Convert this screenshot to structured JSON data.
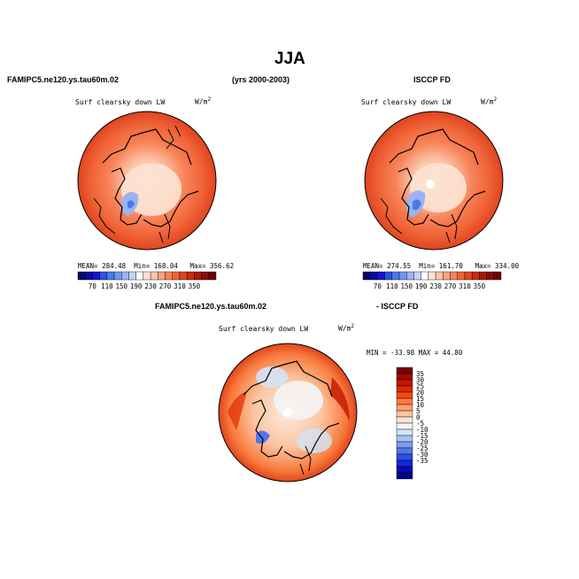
{
  "title": "JJA",
  "top_left_header": "FAMIPC5.ne120.ys.tau60m.02",
  "top_center_header": "(yrs 2000-2003)",
  "top_right_header": "ISCCP FD",
  "bottom_left_header": "FAMIPC5.ne120.ys.tau60m.02",
  "bottom_right_header": "- ISCCP FD",
  "panels": [
    {
      "variable": "Surf clearsky down LW",
      "units_base": "W/m",
      "units_exp": "2",
      "mean_label": "MEAN=",
      "mean": "284.48",
      "min_label": "Min=",
      "min": "168.04",
      "max_label": "Max=",
      "max": "356.62"
    },
    {
      "variable": "Surf clearsky down LW",
      "units_base": "W/m",
      "units_exp": "2",
      "mean_label": "MEAN=",
      "mean": "274.55",
      "min_label": "Min=",
      "min": "161.70",
      "max_label": "Max=",
      "max": "334.00"
    },
    {
      "variable": "Surf clearsky down LW",
      "units_base": "W/m",
      "units_exp": "2",
      "min_text": "MIN = -33.98",
      "max_text": "MAX =  44.80"
    }
  ],
  "abs_colorbar": {
    "labels": [
      "70",
      "110",
      "150",
      "190",
      "230",
      "270",
      "310",
      "350"
    ],
    "colors": [
      "#08086a",
      "#0a0aa8",
      "#1414d2",
      "#2a52e6",
      "#4a7ae8",
      "#7296ee",
      "#9ab4f2",
      "#c4d4f6",
      "#ffffff",
      "#fde2d2",
      "#fcc4a8",
      "#fba47e",
      "#f8845a",
      "#f06438",
      "#e0441e",
      "#c82a10",
      "#a81808",
      "#8a0c04",
      "#6e0400"
    ]
  },
  "diff_colorbar": {
    "labels": [
      "35",
      "30",
      "25",
      "20",
      "15",
      "10",
      "5",
      "0",
      "-5",
      "-10",
      "-15",
      "-20",
      "-25",
      "-30",
      "-35"
    ],
    "colors": [
      "#7a0000",
      "#a00800",
      "#c41400",
      "#e02a00",
      "#f24a10",
      "#f87a3c",
      "#fca070",
      "#fdc4a0",
      "#fee4d0",
      "#f4f4f4",
      "#d4e4f6",
      "#a8c2f2",
      "#7a9cee",
      "#5076ea",
      "#2a4ee6",
      "#1226d8",
      "#0a0ab4",
      "#060686"
    ]
  }
}
